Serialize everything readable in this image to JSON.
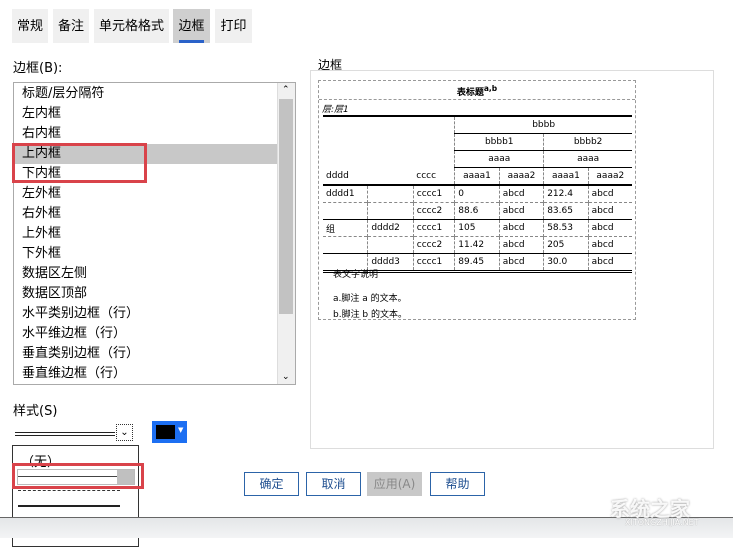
{
  "tabs": [
    "常规",
    "备注",
    "单元格格式",
    "边框",
    "打印"
  ],
  "active_tab": "边框",
  "border_label": "边框(B):",
  "border_items": [
    "标题/层分隔符",
    "左内框",
    "右内框",
    "上内框",
    "下内框",
    "左外框",
    "右外框",
    "上外框",
    "下外框",
    "数据区左侧",
    "数据区顶部",
    "水平类别边框（行）",
    "水平维边框（行）",
    "垂直类别边框（行）",
    "垂直维边框（行）"
  ],
  "selected_item": "上内框",
  "style_label": "样式(S)",
  "style_options": [
    "（无）"
  ],
  "color": "#000000",
  "preview": {
    "label": "边框",
    "title": "表标题",
    "title_sup": "a,b",
    "layer": "层:层1",
    "col_top": "bbbb",
    "col_mid": [
      "bbbb1",
      "bbbb2"
    ],
    "col_sub": [
      "aaaa",
      "aaaa"
    ],
    "row_head": [
      "dddd",
      "cccc"
    ],
    "leaf_heads": [
      "aaaa1",
      "aaaa2",
      "aaaa1",
      "aaaa2"
    ],
    "rows": [
      [
        "dddd1",
        "",
        "cccc1",
        "0",
        "abcd",
        "212.4",
        "abcd"
      ],
      [
        "",
        "",
        "cccc2",
        "88.6",
        "abcd",
        "83.65",
        "abcd"
      ],
      [
        "组",
        "dddd2",
        "cccc1",
        "105",
        "abcd",
        "58.53",
        "abcd"
      ],
      [
        "",
        "",
        "cccc2",
        "11.42",
        "abcd",
        "205",
        "abcd"
      ],
      [
        "",
        "dddd3",
        "cccc1",
        "89.45",
        "abcd",
        "30.0",
        "abcd"
      ]
    ],
    "caption": "表文字说明",
    "footnotes": [
      "a.脚注 a 的文本。",
      "b.脚注 b 的文本。"
    ]
  },
  "buttons": {
    "ok": "确定",
    "cancel": "取消",
    "apply": "应用(A)",
    "help": "帮助"
  },
  "watermark": {
    "text": "系统之家",
    "url": "XITONGZHIJIA.NET"
  }
}
